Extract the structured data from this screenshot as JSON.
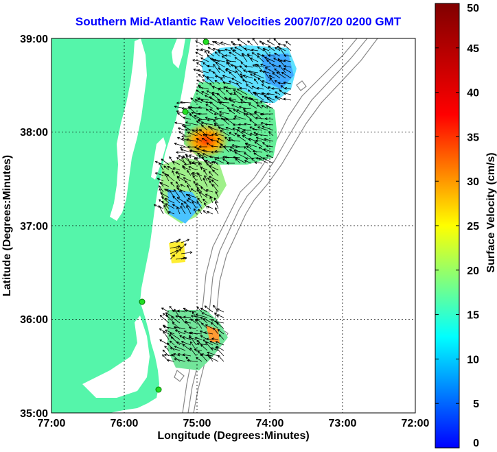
{
  "title": "Southern Mid-Atlantic Raw Velocities 2007/07/20 0200 GMT",
  "xlabel": "Longitude (Degrees:Minutes)",
  "ylabel": "Latitude (Degrees:Minutes)",
  "x_ticks": [
    "77:00",
    "76:00",
    "75:00",
    "74:00",
    "73:00",
    "72:00"
  ],
  "y_ticks": [
    "39:00",
    "38:00",
    "37:00",
    "36:00",
    "35:00"
  ],
  "colorbar": {
    "label": "Surface Velocity (cm/s)",
    "ticks": [
      "0",
      "5",
      "10",
      "15",
      "20",
      "25",
      "30",
      "35",
      "40",
      "45",
      "50"
    ],
    "range": [
      0,
      50
    ]
  },
  "colors": {
    "land": "#55f5aa",
    "title": "#0000ff"
  }
}
